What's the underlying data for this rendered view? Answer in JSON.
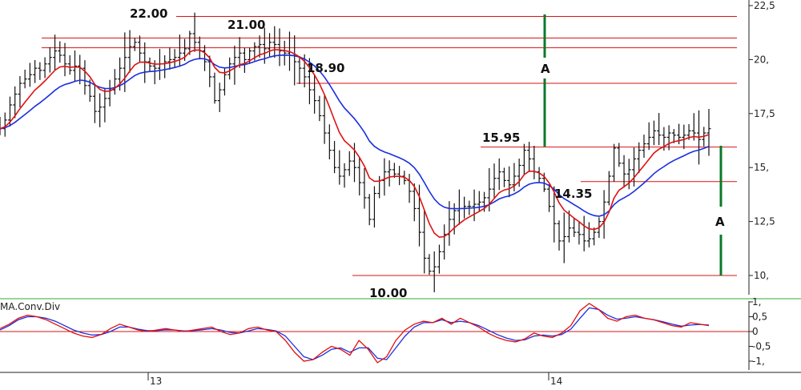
{
  "chart_data": [
    {
      "type": "candlestick",
      "title": "",
      "y_axis_ticks": [
        "22,5",
        "20,",
        "17,5",
        "15,",
        "12,5",
        "10,"
      ],
      "y_tick_values": [
        22.5,
        20,
        17.5,
        15,
        12.5,
        10
      ],
      "ylim": [
        9.0,
        22.8
      ],
      "x_axis_ticks": [
        "13",
        "14"
      ],
      "x_tick_positions": [
        0.185,
        0.685
      ],
      "grid": false,
      "level_labels": [
        "22.00",
        "21.00",
        "18.90",
        "15.95",
        "14.35",
        "10.00"
      ],
      "horizontal_levels": [
        22.0,
        21.0,
        20.55,
        18.9,
        15.95,
        14.35,
        10.0
      ],
      "measure_labels": [
        "A",
        "A"
      ],
      "close_series": [
        16.8,
        17.2,
        17.9,
        18.4,
        18.9,
        19.1,
        19.3,
        19.6,
        19.5,
        19.8,
        20.1,
        20.4,
        20.2,
        19.8,
        19.5,
        19.7,
        19.6,
        18.8,
        18.3,
        17.6,
        17.8,
        18.2,
        18.6,
        19.1,
        19.6,
        20.1,
        20.6,
        20.8,
        20.3,
        19.9,
        19.7,
        19.6,
        19.8,
        19.9,
        20.0,
        20.1,
        20.3,
        20.5,
        21.2,
        20.8,
        20.4,
        19.9,
        19.2,
        18.1,
        18.6,
        19.3,
        19.8,
        20.1,
        20.3,
        20.0,
        20.4,
        20.6,
        20.7,
        20.5,
        20.8,
        20.7,
        20.4,
        20.3,
        20.2,
        19.9,
        19.6,
        19.2,
        18.6,
        18.1,
        17.4,
        16.6,
        15.8,
        15.0,
        14.6,
        14.9,
        15.3,
        15.0,
        14.3,
        13.6,
        12.6,
        13.8,
        14.4,
        14.8,
        14.9,
        14.7,
        14.6,
        14.4,
        13.9,
        13.1,
        12.0,
        10.8,
        10.2,
        10.4,
        11.1,
        11.9,
        12.6,
        13.0,
        13.1,
        13.2,
        13.2,
        13.3,
        13.4,
        13.6,
        14.0,
        14.5,
        14.8,
        14.4,
        14.2,
        14.6,
        15.1,
        15.8,
        15.4,
        14.8,
        14.5,
        14.0,
        13.2,
        12.4,
        11.6,
        11.8,
        12.2,
        12.0,
        11.9,
        11.6,
        11.7,
        12.0,
        12.5,
        13.4,
        14.6,
        15.9,
        15.2,
        14.7,
        14.9,
        15.4,
        15.8,
        16.1,
        16.4,
        16.7,
        16.5,
        16.4,
        16.6,
        16.5,
        16.4,
        16.5,
        16.7,
        16.6,
        16.3,
        16.6,
        16.8
      ]
    },
    {
      "type": "line",
      "title": "MA.Conv.Div",
      "y_axis_ticks": [
        "1,",
        "0,5",
        "0",
        "-0,5",
        "-1,"
      ],
      "y_tick_values": [
        1,
        0.5,
        0,
        -0.5,
        -1
      ],
      "ylim": [
        -1.2,
        1.2
      ],
      "reference_line": 0,
      "series": [
        {
          "values": [
            0.1,
            0.25,
            0.45,
            0.55,
            0.5,
            0.4,
            0.25,
            0.1,
            -0.05,
            -0.15,
            -0.2,
            -0.1,
            0.1,
            0.25,
            0.15,
            0.05,
            0.0,
            0.05,
            0.1,
            0.05,
            0.0,
            0.05,
            0.1,
            0.15,
            0.0,
            -0.1,
            -0.05,
            0.1,
            0.15,
            0.05,
            0.0,
            -0.3,
            -0.7,
            -1.0,
            -0.95,
            -0.7,
            -0.5,
            -0.6,
            -0.8,
            -0.3,
            -0.6,
            -1.05,
            -0.85,
            -0.3,
            0.05,
            0.25,
            0.35,
            0.3,
            0.45,
            0.25,
            0.45,
            0.3,
            0.15,
            -0.05,
            -0.2,
            -0.3,
            -0.35,
            -0.25,
            -0.05,
            -0.15,
            -0.2,
            -0.05,
            0.2,
            0.7,
            0.95,
            0.75,
            0.45,
            0.35,
            0.5,
            0.55,
            0.45,
            0.4,
            0.3,
            0.2,
            0.15,
            0.3,
            0.25,
            0.2
          ]
        },
        {
          "values": [
            0.05,
            0.2,
            0.4,
            0.5,
            0.5,
            0.45,
            0.35,
            0.2,
            0.05,
            -0.05,
            -0.12,
            -0.1,
            0.0,
            0.15,
            0.15,
            0.08,
            0.03,
            0.03,
            0.06,
            0.05,
            0.02,
            0.03,
            0.06,
            0.1,
            0.05,
            -0.03,
            -0.05,
            0.02,
            0.1,
            0.07,
            0.02,
            -0.15,
            -0.5,
            -0.85,
            -0.95,
            -0.8,
            -0.6,
            -0.55,
            -0.7,
            -0.55,
            -0.55,
            -0.9,
            -0.95,
            -0.55,
            -0.15,
            0.15,
            0.3,
            0.3,
            0.4,
            0.3,
            0.35,
            0.3,
            0.2,
            0.05,
            -0.1,
            -0.22,
            -0.3,
            -0.28,
            -0.15,
            -0.12,
            -0.15,
            -0.1,
            0.08,
            0.45,
            0.8,
            0.75,
            0.55,
            0.42,
            0.45,
            0.5,
            0.45,
            0.4,
            0.33,
            0.25,
            0.18,
            0.22,
            0.24,
            0.22
          ]
        }
      ]
    }
  ],
  "colors": {
    "price": "#111111",
    "ma_fast": "#e01010",
    "ma_slow": "#1a2ee0",
    "level": "#d81515",
    "measure": "#0a7a2a",
    "divider": "#33aa33"
  }
}
